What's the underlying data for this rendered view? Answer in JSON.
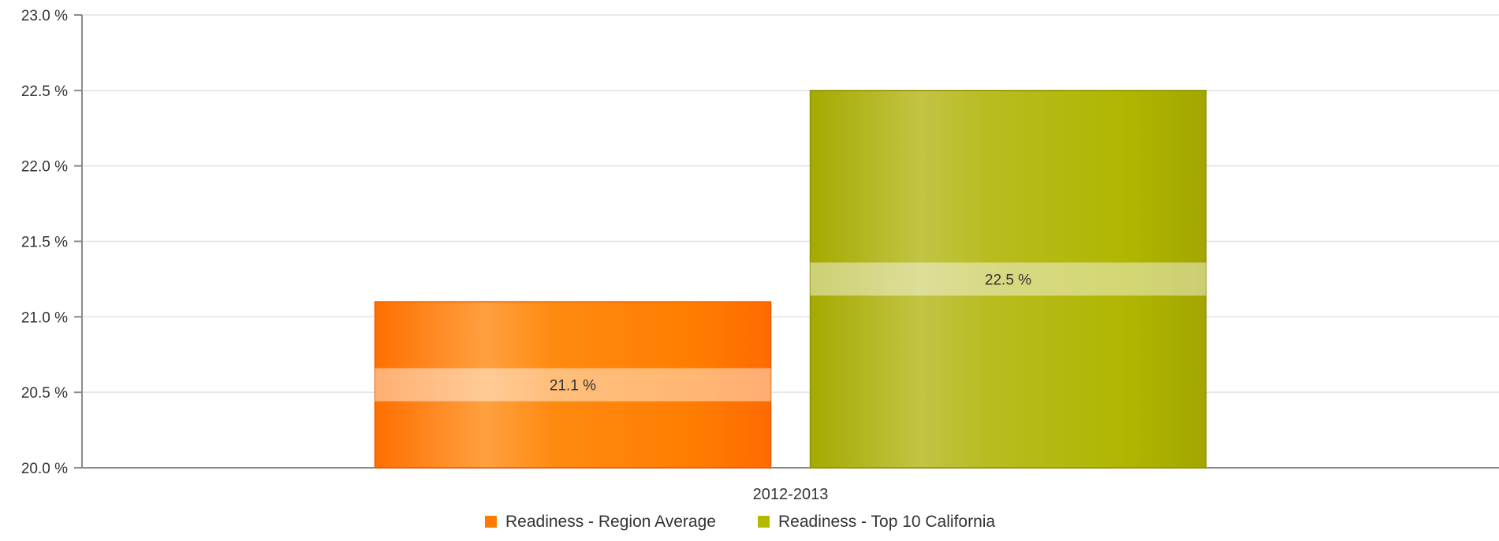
{
  "chart_data": {
    "type": "bar",
    "categories": [
      "2012-2013"
    ],
    "series": [
      {
        "name": "Readiness - Region Average",
        "values": [
          21.1
        ],
        "label": "21.1 %",
        "color": "#ff7b00"
      },
      {
        "name": "Readiness - Top 10 California",
        "values": [
          22.5
        ],
        "label": "22.5 %",
        "color": "#b2b900"
      }
    ],
    "ylim": [
      20.0,
      23.0
    ],
    "y_ticks": [
      20.0,
      20.5,
      21.0,
      21.5,
      22.0,
      22.5,
      23.0
    ],
    "y_tick_labels": [
      "20.0 %",
      "20.5 %",
      "21.0 %",
      "21.5 %",
      "22.0 %",
      "22.5 %",
      "23.0 %"
    ],
    "grid": true,
    "legend_position": "bottom-center",
    "title": "",
    "xlabel": "",
    "ylabel": ""
  }
}
